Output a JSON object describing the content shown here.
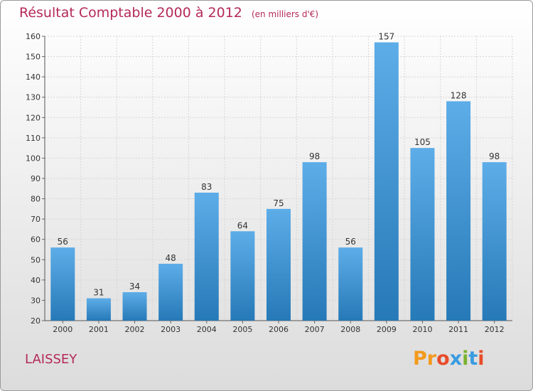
{
  "header": {
    "title": "Résultat Comptable 2000 à 2012",
    "unit": "(en milliers d'€)"
  },
  "place": "LAISSEY",
  "logo": {
    "letters": [
      "P",
      "r",
      "o",
      "x",
      "i",
      "t",
      "i"
    ],
    "colors": [
      "#f39a1e",
      "#f39a1e",
      "#e84d2a",
      "#3a9be0",
      "#7ab32e",
      "#3a9be0",
      "#e84d2a"
    ]
  },
  "colors": {
    "title": "#b5295a",
    "bar_top": "#5dade8",
    "bar_bottom": "#2679b7"
  },
  "chart_data": {
    "type": "bar",
    "title": "Résultat Comptable 2000 à 2012",
    "subtitle": "(en milliers d'€)",
    "categories": [
      "2000",
      "2001",
      "2002",
      "2003",
      "2004",
      "2005",
      "2006",
      "2007",
      "2008",
      "2009",
      "2010",
      "2011",
      "2012"
    ],
    "values": [
      56,
      31,
      34,
      48,
      83,
      64,
      75,
      98,
      56,
      157,
      105,
      128,
      98
    ],
    "ylim": [
      20,
      160
    ],
    "yticks": [
      20,
      30,
      40,
      50,
      60,
      70,
      80,
      90,
      100,
      110,
      120,
      130,
      140,
      150,
      160
    ],
    "grid": true
  }
}
